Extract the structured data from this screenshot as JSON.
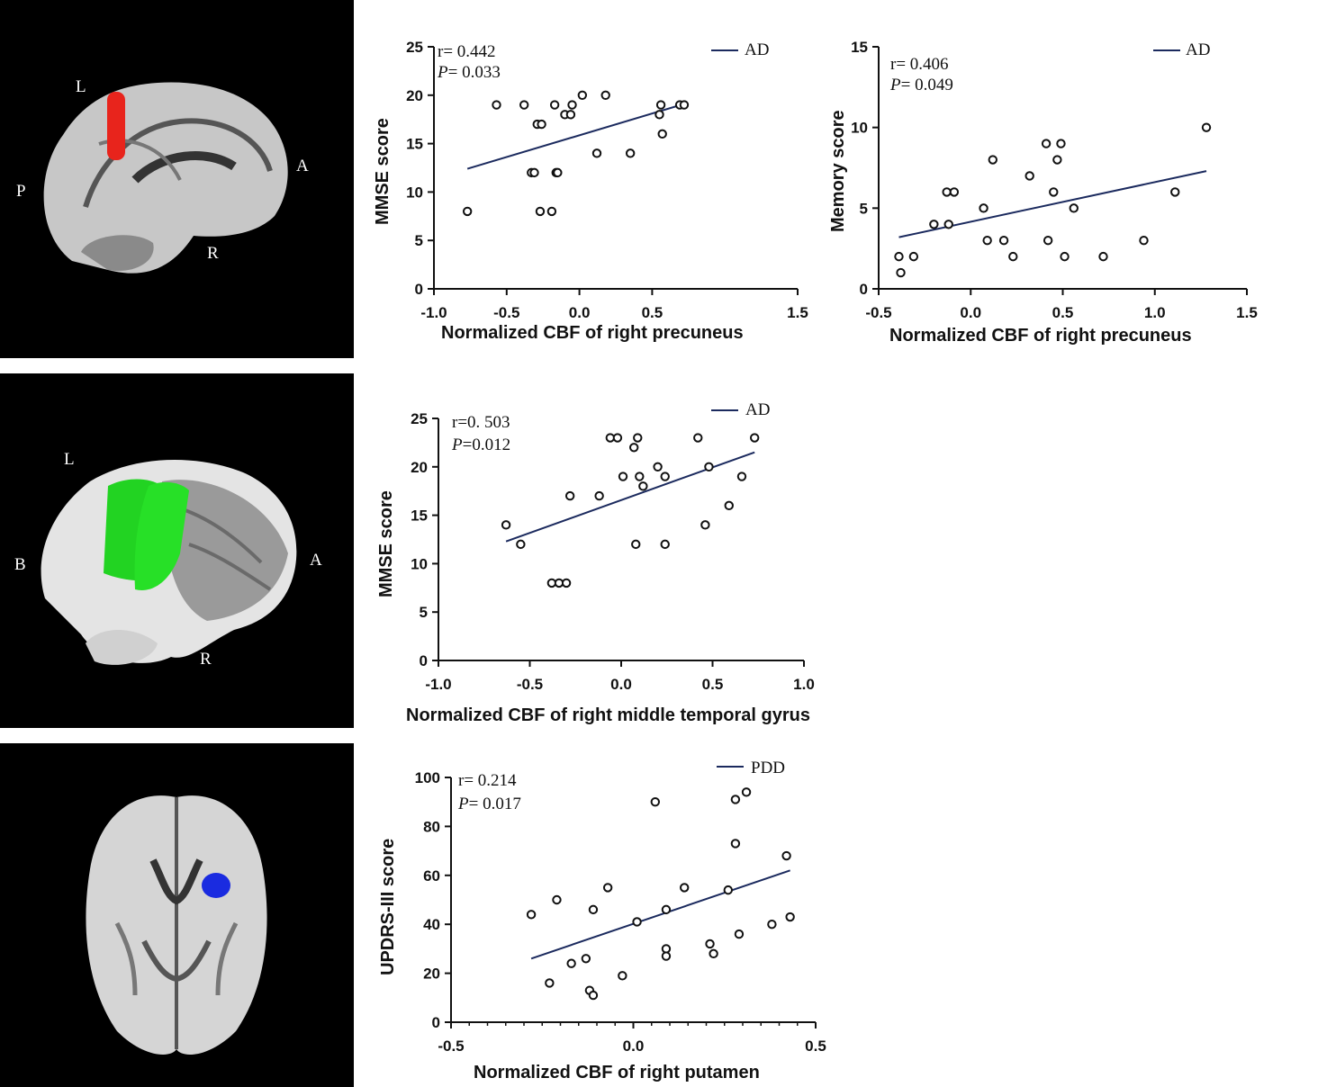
{
  "figure": {
    "brains": [
      {
        "labels": {
          "top": "L",
          "left": "P",
          "right": "A",
          "bottom": "R"
        },
        "roi_color": "#e8241c",
        "roi_name": "right precuneus"
      },
      {
        "labels": {
          "top": "L",
          "left": "B",
          "right": "A",
          "bottom": "R"
        },
        "roi_color": "#22d322",
        "roi_name": "right middle temporal gyrus"
      },
      {
        "labels": {},
        "roi_color": "#1a2be0",
        "roi_name": "right putamen"
      }
    ]
  },
  "chart_data": [
    {
      "type": "scatter",
      "title": "",
      "xlabel": "Normalized CBF of right precuneus",
      "ylabel": "MMSE score",
      "xlim": [
        -1.0,
        1.5
      ],
      "ylim": [
        0,
        25
      ],
      "xticks": [
        -1.0,
        -0.5,
        0.0,
        0.5,
        1.5
      ],
      "xtick_labels": [
        "-1.0",
        "-0.5",
        "0.0",
        "0.5",
        "1.5"
      ],
      "yticks": [
        0,
        5,
        10,
        15,
        20,
        25
      ],
      "ytick_labels": [
        "0",
        "5",
        "10",
        "15",
        "20",
        "25"
      ],
      "stats": {
        "r": "r= 0.442",
        "p_label": "P",
        "p": "= 0.033"
      },
      "legend": "AD",
      "points": [
        [
          -0.77,
          8
        ],
        [
          -0.57,
          19
        ],
        [
          -0.38,
          19
        ],
        [
          -0.33,
          12
        ],
        [
          -0.31,
          12
        ],
        [
          -0.29,
          17
        ],
        [
          -0.26,
          17
        ],
        [
          -0.27,
          8
        ],
        [
          -0.19,
          8
        ],
        [
          -0.17,
          19
        ],
        [
          -0.16,
          12
        ],
        [
          -0.15,
          12
        ],
        [
          -0.1,
          18
        ],
        [
          -0.06,
          18
        ],
        [
          -0.05,
          19
        ],
        [
          0.02,
          20
        ],
        [
          0.12,
          14
        ],
        [
          0.18,
          20
        ],
        [
          0.35,
          14
        ],
        [
          0.55,
          18
        ],
        [
          0.56,
          19
        ],
        [
          0.57,
          16
        ],
        [
          0.69,
          19
        ],
        [
          0.72,
          19
        ]
      ],
      "fit": [
        [
          -0.77,
          12.4
        ],
        [
          0.72,
          19.1
        ]
      ]
    },
    {
      "type": "scatter",
      "title": "",
      "xlabel": "Normalized CBF of right precuneus",
      "ylabel": "Memory score",
      "xlim": [
        -0.5,
        1.5
      ],
      "ylim": [
        0,
        15
      ],
      "xticks": [
        -0.5,
        0.0,
        0.5,
        1.0,
        1.5
      ],
      "xtick_labels": [
        "-0.5",
        "0.0",
        "0.5",
        "1.0",
        "1.5"
      ],
      "yticks": [
        0,
        5,
        10,
        15
      ],
      "ytick_labels": [
        "0",
        "5",
        "10",
        "15"
      ],
      "stats": {
        "r": "r= 0.406",
        "p_label": "P",
        "p": "= 0.049"
      },
      "legend": "AD",
      "points": [
        [
          -0.39,
          2
        ],
        [
          -0.38,
          1
        ],
        [
          -0.31,
          2
        ],
        [
          -0.2,
          4
        ],
        [
          -0.13,
          6
        ],
        [
          -0.12,
          4
        ],
        [
          -0.09,
          6
        ],
        [
          0.07,
          5
        ],
        [
          0.09,
          3
        ],
        [
          0.12,
          8
        ],
        [
          0.18,
          3
        ],
        [
          0.23,
          2
        ],
        [
          0.32,
          7
        ],
        [
          0.41,
          9
        ],
        [
          0.42,
          3
        ],
        [
          0.45,
          6
        ],
        [
          0.47,
          8
        ],
        [
          0.49,
          9
        ],
        [
          0.51,
          2
        ],
        [
          0.56,
          5
        ],
        [
          0.72,
          2
        ],
        [
          0.94,
          3
        ],
        [
          1.11,
          6
        ],
        [
          1.28,
          10
        ]
      ],
      "fit": [
        [
          -0.39,
          3.2
        ],
        [
          1.28,
          7.3
        ]
      ]
    },
    {
      "type": "scatter",
      "title": "",
      "xlabel": "Normalized CBF of right middle temporal gyrus",
      "ylabel": "MMSE score",
      "xlim": [
        -1.0,
        1.0
      ],
      "ylim": [
        0,
        25
      ],
      "xticks": [
        -1.0,
        -0.5,
        0.0,
        0.5,
        1.0
      ],
      "xtick_labels": [
        "-1.0",
        "-0.5",
        "0.0",
        "0.5",
        "1.0"
      ],
      "yticks": [
        0,
        5,
        10,
        15,
        20,
        25
      ],
      "ytick_labels": [
        "0",
        "5",
        "10",
        "15",
        "20",
        "25"
      ],
      "stats": {
        "r": "r=0. 503",
        "p_label": "P",
        "p": "=0.012"
      },
      "legend": "AD",
      "points": [
        [
          -0.63,
          14
        ],
        [
          -0.55,
          12
        ],
        [
          -0.38,
          8
        ],
        [
          -0.34,
          8
        ],
        [
          -0.3,
          8
        ],
        [
          -0.28,
          17
        ],
        [
          -0.12,
          17
        ],
        [
          -0.06,
          23
        ],
        [
          -0.02,
          23
        ],
        [
          0.01,
          19
        ],
        [
          0.07,
          22
        ],
        [
          0.08,
          12
        ],
        [
          0.09,
          23
        ],
        [
          0.1,
          19
        ],
        [
          0.12,
          18
        ],
        [
          0.2,
          20
        ],
        [
          0.24,
          19
        ],
        [
          0.24,
          12
        ],
        [
          0.42,
          23
        ],
        [
          0.46,
          14
        ],
        [
          0.48,
          20
        ],
        [
          0.59,
          16
        ],
        [
          0.66,
          19
        ],
        [
          0.73,
          23
        ]
      ],
      "fit": [
        [
          -0.63,
          12.3
        ],
        [
          0.73,
          21.5
        ]
      ]
    },
    {
      "type": "scatter",
      "title": "",
      "xlabel": "Normalized CBF of right putamen",
      "ylabel": "UPDRS-III score",
      "xlim": [
        -0.5,
        0.5
      ],
      "ylim": [
        0,
        100
      ],
      "xticks": [
        -0.5,
        0.0,
        0.5
      ],
      "xtick_labels": [
        "-0.5",
        "0.0",
        "0.5"
      ],
      "minor_xtick_step": 0.05,
      "yticks": [
        0,
        20,
        40,
        60,
        80,
        100
      ],
      "ytick_labels": [
        "0",
        "20",
        "40",
        "60",
        "80",
        "100"
      ],
      "stats": {
        "r": "r= 0.214",
        "p_label": "P",
        "p": "= 0.017"
      },
      "legend": "PDD",
      "points": [
        [
          -0.28,
          44
        ],
        [
          -0.23,
          16
        ],
        [
          -0.21,
          50
        ],
        [
          -0.17,
          24
        ],
        [
          -0.13,
          26
        ],
        [
          -0.12,
          13
        ],
        [
          -0.11,
          11
        ],
        [
          -0.11,
          46
        ],
        [
          -0.07,
          55
        ],
        [
          -0.03,
          19
        ],
        [
          0.01,
          41
        ],
        [
          0.06,
          90
        ],
        [
          0.09,
          30
        ],
        [
          0.09,
          27
        ],
        [
          0.09,
          46
        ],
        [
          0.14,
          55
        ],
        [
          0.26,
          54
        ],
        [
          0.21,
          32
        ],
        [
          0.22,
          28
        ],
        [
          0.28,
          91
        ],
        [
          0.28,
          73
        ],
        [
          0.29,
          36
        ],
        [
          0.31,
          94
        ],
        [
          0.38,
          40
        ],
        [
          0.42,
          68
        ],
        [
          0.43,
          43
        ]
      ],
      "fit": [
        [
          -0.28,
          26
        ],
        [
          0.43,
          62
        ]
      ]
    }
  ]
}
